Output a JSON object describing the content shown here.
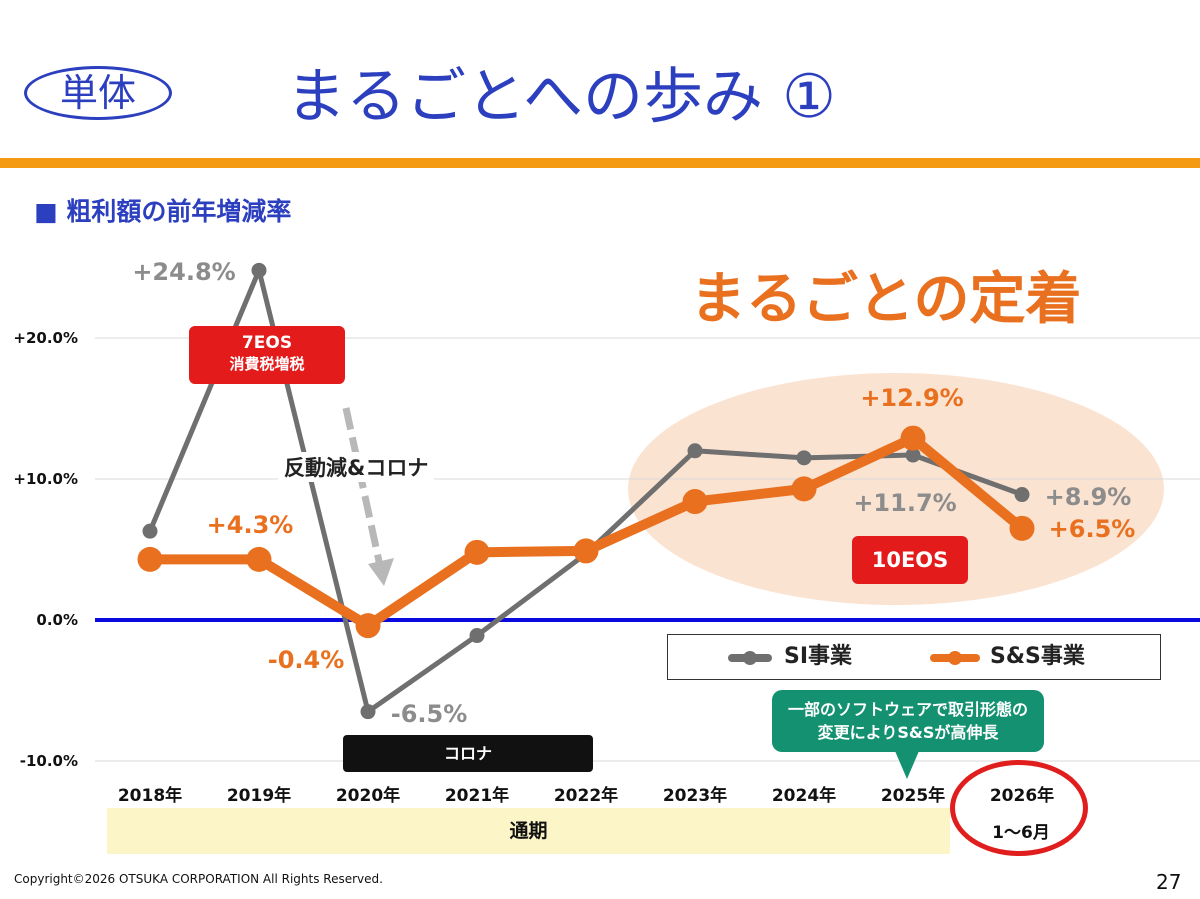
{
  "header": {
    "badge": "単体",
    "title": "まるごとへの歩み ①"
  },
  "section_heading": "■ 粗利額の前年増減率",
  "headline": "まるごとの定着",
  "annotations": {
    "eos7_line1": "7EOS",
    "eos7_line2": "消費税増税",
    "arrow_note": "反動減&コロナ",
    "eos10": "10EOS",
    "corona": "コロナ",
    "callout_line1": "一部のソフトウェアで取引形態の",
    "callout_line2": "変更によりS&Sが高伸長",
    "period": "通期",
    "last_period_sub": "1～6月"
  },
  "legend": {
    "si": "SI事業",
    "ss": "S&S事業"
  },
  "colors": {
    "si": "#6f6f6f",
    "ss": "#e8701e",
    "zero_line": "#0a0adf",
    "title": "#2b3fbf",
    "accent_rule": "#f39a12",
    "highlight_ellipse": "#fbe3d2"
  },
  "chart_data": {
    "type": "line",
    "categories": [
      "2018年",
      "2019年",
      "2020年",
      "2021年",
      "2022年",
      "2023年",
      "2024年",
      "2025年",
      "2026年"
    ],
    "y_ticks": [
      "+20.0%",
      "+10.0%",
      "0.0%",
      "-10.0%"
    ],
    "ylim": [
      -10,
      20
    ],
    "series": [
      {
        "name": "SI事業",
        "values": [
          6.3,
          24.8,
          -6.5,
          -1.1,
          4.7,
          12.0,
          11.5,
          11.7,
          8.9
        ],
        "labels": [
          {
            "index": 1,
            "text": "+24.8%"
          },
          {
            "index": 2,
            "text": "-6.5%"
          },
          {
            "index": 7,
            "text": "+11.7%"
          },
          {
            "index": 8,
            "text": "+8.9%"
          }
        ]
      },
      {
        "name": "S&S事業",
        "values": [
          4.3,
          4.3,
          -0.4,
          4.8,
          4.9,
          8.4,
          9.3,
          12.9,
          6.5
        ],
        "labels": [
          {
            "index": 1,
            "text": "+4.3%"
          },
          {
            "index": 2,
            "text": "-0.4%"
          },
          {
            "index": 7,
            "text": "+12.9%"
          },
          {
            "index": 8,
            "text": "+6.5%"
          }
        ]
      }
    ]
  },
  "footer": {
    "copyright": "Copyright©2026 OTSUKA CORPORATION All Rights Reserved.",
    "page_number": "27"
  }
}
